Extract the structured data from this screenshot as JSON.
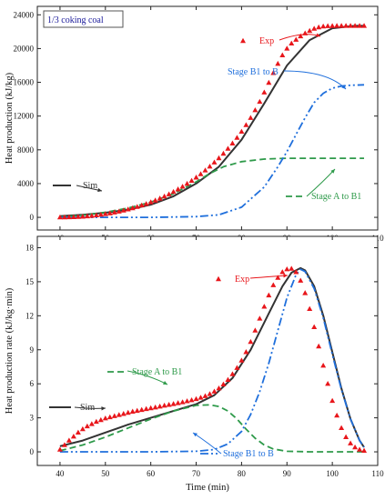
{
  "chart_data": [
    {
      "type": "line",
      "title_box": "1/3 coking coal",
      "ylabel": "Heat production (kJ/kg)",
      "xlabel": "",
      "xlim": [
        35,
        110
      ],
      "ylim": [
        -1500,
        25000
      ],
      "xticks": [
        40,
        50,
        60,
        70,
        80,
        90,
        100,
        110
      ],
      "yticks": [
        0,
        4000,
        8000,
        12000,
        16000,
        20000,
        24000
      ],
      "series": [
        {
          "name": "Exp",
          "kind": "markers",
          "color": "#e8161b",
          "x": [
            40,
            41,
            42,
            43,
            44,
            45,
            46,
            47,
            48,
            49,
            50,
            51,
            52,
            53,
            54,
            55,
            56,
            57,
            58,
            59,
            60,
            61,
            62,
            63,
            64,
            65,
            66,
            67,
            68,
            69,
            70,
            71,
            72,
            73,
            74,
            75,
            76,
            77,
            78,
            79,
            80,
            81,
            82,
            83,
            84,
            85,
            86,
            87,
            88,
            89,
            90,
            91,
            92,
            93,
            94,
            95,
            96,
            97,
            98,
            99,
            100,
            101,
            102,
            103,
            104,
            105,
            106,
            107
          ],
          "y": [
            0,
            5,
            15,
            30,
            55,
            90,
            130,
            180,
            240,
            310,
            390,
            480,
            580,
            690,
            810,
            940,
            1080,
            1240,
            1410,
            1590,
            1790,
            2000,
            2230,
            2480,
            2740,
            3020,
            3320,
            3640,
            3980,
            4340,
            4720,
            5120,
            5560,
            6020,
            6500,
            7010,
            7550,
            8130,
            8760,
            9430,
            10150,
            10930,
            11780,
            12700,
            13700,
            14800,
            15950,
            17100,
            18200,
            19200,
            20000,
            20600,
            21050,
            21450,
            21800,
            22100,
            22350,
            22520,
            22620,
            22660,
            22680,
            22690,
            22690,
            22690,
            22690,
            22690,
            22690,
            22690
          ]
        },
        {
          "name": "Sim",
          "kind": "line",
          "color": "#333333",
          "x": [
            40,
            45,
            50,
            55,
            60,
            65,
            70,
            75,
            80,
            85,
            90,
            95,
            100,
            105,
            107
          ],
          "y": [
            150,
            300,
            550,
            900,
            1500,
            2500,
            4000,
            6000,
            9200,
            13500,
            18000,
            21000,
            22400,
            22700,
            22700
          ]
        },
        {
          "name": "Stage A to B1",
          "kind": "dash",
          "color": "#2e9a4a",
          "x": [
            40,
            45,
            50,
            55,
            60,
            65,
            70,
            73,
            76,
            80,
            85,
            90,
            95,
            100,
            105,
            107
          ],
          "y": [
            50,
            250,
            600,
            1100,
            1800,
            2800,
            4200,
            5200,
            6000,
            6600,
            6900,
            7000,
            7000,
            7000,
            7000,
            7000
          ]
        },
        {
          "name": "Stage B1 to B",
          "kind": "dashdot",
          "color": "#1f6fdc",
          "x": [
            40,
            50,
            60,
            70,
            75,
            80,
            85,
            88,
            90,
            92,
            94,
            96,
            98,
            100,
            102,
            104,
            107
          ],
          "y": [
            0,
            0,
            0,
            80,
            300,
            1200,
            3600,
            6000,
            7800,
            9800,
            11800,
            13600,
            14700,
            15300,
            15550,
            15650,
            15700
          ]
        }
      ],
      "annotations": [
        {
          "text": "Exp",
          "color": "#e8161b"
        },
        {
          "text": "Stage B1 to B",
          "color": "#1f6fdc"
        },
        {
          "text": "Sim",
          "color": "#333333"
        },
        {
          "text": "Stage A to B1",
          "color": "#2e9a4a"
        }
      ]
    },
    {
      "type": "line",
      "title_box": "",
      "ylabel": "Heat production rate (kJ/kg·min)",
      "xlabel": "Time (min)",
      "xlim": [
        35,
        110
      ],
      "ylim": [
        -1.2,
        19
      ],
      "xticks": [
        40,
        50,
        60,
        70,
        80,
        90,
        100,
        110
      ],
      "yticks": [
        0,
        3,
        6,
        9,
        12,
        15,
        18
      ],
      "series": [
        {
          "name": "Exp",
          "kind": "markers",
          "color": "#e8161b",
          "x": [
            40,
            41,
            42,
            43,
            44,
            45,
            46,
            47,
            48,
            49,
            50,
            51,
            52,
            53,
            54,
            55,
            56,
            57,
            58,
            59,
            60,
            61,
            62,
            63,
            64,
            65,
            66,
            67,
            68,
            69,
            70,
            71,
            72,
            73,
            74,
            75,
            76,
            77,
            78,
            79,
            80,
            81,
            82,
            83,
            84,
            85,
            86,
            87,
            88,
            89,
            90,
            91,
            92,
            93,
            94,
            95,
            96,
            97,
            98,
            99,
            100,
            101,
            102,
            103,
            104,
            105,
            106,
            107
          ],
          "y": [
            0.2,
            0.6,
            1.0,
            1.35,
            1.7,
            2.0,
            2.25,
            2.45,
            2.65,
            2.8,
            2.95,
            3.05,
            3.15,
            3.25,
            3.35,
            3.45,
            3.55,
            3.62,
            3.7,
            3.78,
            3.85,
            3.92,
            4.0,
            4.08,
            4.15,
            4.22,
            4.3,
            4.38,
            4.47,
            4.56,
            4.66,
            4.78,
            4.92,
            5.1,
            5.32,
            5.6,
            5.95,
            6.35,
            6.85,
            7.4,
            8.05,
            8.8,
            9.7,
            10.7,
            11.75,
            12.8,
            13.8,
            14.7,
            15.35,
            15.85,
            16.1,
            16.15,
            15.85,
            15.1,
            14.0,
            12.6,
            11.0,
            9.3,
            7.6,
            6.0,
            4.5,
            3.2,
            2.1,
            1.3,
            0.75,
            0.4,
            0.2,
            0.1
          ]
        },
        {
          "name": "Sim",
          "kind": "line",
          "color": "#333333",
          "x": [
            40,
            45,
            50,
            55,
            60,
            65,
            70,
            74,
            78,
            82,
            86,
            89,
            91,
            93,
            94,
            96,
            98,
            100,
            102,
            104,
            106,
            107
          ],
          "y": [
            0.5,
            1.0,
            1.7,
            2.4,
            3.0,
            3.6,
            4.2,
            5.0,
            6.5,
            9.0,
            12.2,
            14.6,
            15.8,
            16.2,
            16.0,
            14.6,
            12.0,
            8.8,
            5.6,
            2.9,
            1.0,
            0.4
          ]
        },
        {
          "name": "Stage A to B1",
          "kind": "dash",
          "color": "#2e9a4a",
          "x": [
            40,
            45,
            50,
            55,
            60,
            65,
            70,
            73,
            75,
            77,
            79,
            81,
            83,
            85,
            87,
            90,
            95,
            100,
            107
          ],
          "y": [
            0.1,
            0.6,
            1.3,
            2.1,
            2.9,
            3.6,
            4.1,
            4.15,
            4.0,
            3.6,
            2.9,
            2.0,
            1.2,
            0.6,
            0.25,
            0.05,
            0,
            0,
            0
          ]
        },
        {
          "name": "Stage B1 to B",
          "kind": "dashdot",
          "color": "#1f6fdc",
          "x": [
            40,
            50,
            60,
            70,
            74,
            77,
            80,
            82,
            84,
            86,
            88,
            90,
            92,
            93,
            94,
            96,
            98,
            100,
            102,
            104,
            106,
            107
          ],
          "y": [
            0,
            0,
            0,
            0.05,
            0.2,
            0.7,
            1.8,
            3.3,
            5.3,
            7.8,
            10.7,
            13.6,
            15.6,
            16.1,
            15.9,
            14.4,
            11.8,
            8.6,
            5.5,
            2.9,
            1.0,
            0.4
          ]
        }
      ],
      "annotations": [
        {
          "text": "Exp",
          "color": "#e8161b"
        },
        {
          "text": "Stage A to B1",
          "color": "#2e9a4a"
        },
        {
          "text": "Sim",
          "color": "#333333"
        },
        {
          "text": "Stage B1 to B",
          "color": "#1f6fdc"
        }
      ]
    }
  ]
}
